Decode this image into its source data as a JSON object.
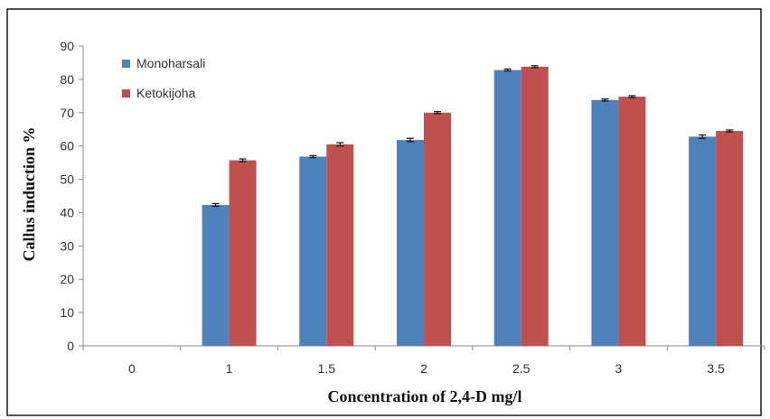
{
  "chart_data": {
    "type": "bar",
    "title": "",
    "xlabel": "Concentration of 2,4-D mg/l",
    "ylabel": "Callus induction %",
    "categories": [
      "0",
      "1",
      "1.5",
      "2",
      "2.5",
      "3",
      "3.5"
    ],
    "series": [
      {
        "name": "Monoharsali",
        "color": "#4f81bd",
        "values": [
          0,
          42.3,
          56.8,
          61.8,
          82.8,
          73.8,
          62.8
        ],
        "errors": [
          0,
          0.4,
          0.3,
          0.5,
          0.3,
          0.3,
          0.5
        ]
      },
      {
        "name": "Ketokijoha",
        "color": "#c0504d",
        "values": [
          0,
          55.7,
          60.5,
          70,
          83.8,
          74.8,
          64.5
        ],
        "errors": [
          0,
          0.4,
          0.5,
          0.3,
          0.3,
          0.3,
          0.3
        ]
      }
    ],
    "ylim": [
      0,
      90
    ],
    "yticks": [
      0,
      10,
      20,
      30,
      40,
      50,
      60,
      70,
      80,
      90
    ],
    "grid": false,
    "legend_position": "top-left"
  }
}
